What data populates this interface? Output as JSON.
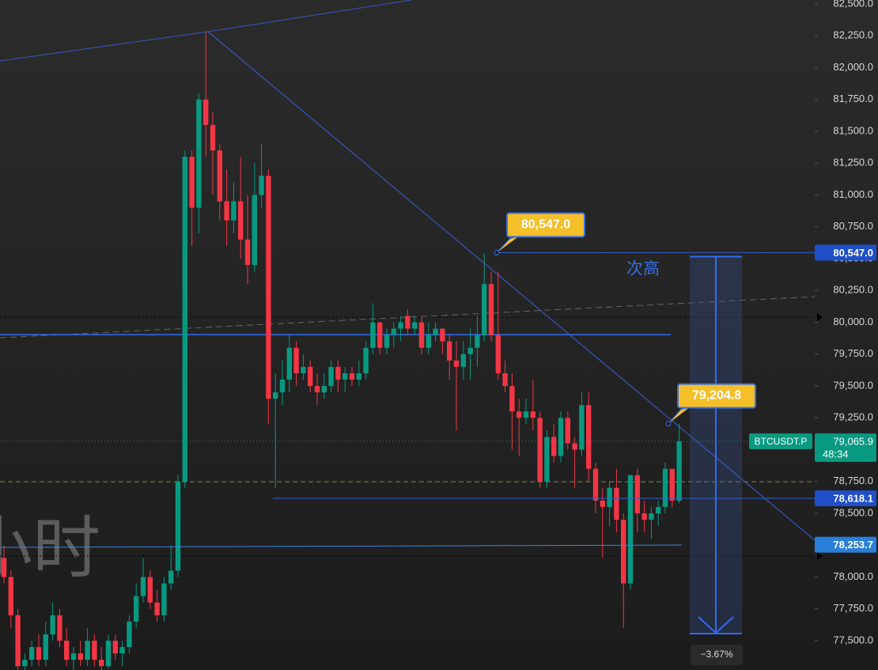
{
  "chart_data": {
    "type": "candlestick",
    "up_color": "#089981",
    "down_color": "#f23645",
    "ylim": [
      77270,
      82531
    ],
    "yticks": [
      {
        "value": 77500,
        "label": "77,500.0"
      },
      {
        "value": 77750,
        "label": "77,750.0"
      },
      {
        "value": 78000,
        "label": "78,000.0"
      },
      {
        "value": 78250,
        "label": "78,250.0"
      },
      {
        "value": 78500,
        "label": "78,500.0"
      },
      {
        "value": 78750,
        "label": "78,750.0"
      },
      {
        "value": 79000,
        "label": "79,000.0"
      },
      {
        "value": 79250,
        "label": "79,250.0"
      },
      {
        "value": 79500,
        "label": "79,500.0"
      },
      {
        "value": 79750,
        "label": "79,750.0"
      },
      {
        "value": 80000,
        "label": "80,000.0"
      },
      {
        "value": 80250,
        "label": "80,250.0"
      },
      {
        "value": 80500,
        "label": "80,500.0"
      },
      {
        "value": 80750,
        "label": "80,750.0"
      },
      {
        "value": 81000,
        "label": "81,000.0"
      },
      {
        "value": 81250,
        "label": "81,250.0"
      },
      {
        "value": 81500,
        "label": "81,500.0"
      },
      {
        "value": 81750,
        "label": "81,750.0"
      },
      {
        "value": 82000,
        "label": "82,000.0"
      },
      {
        "value": 82250,
        "label": "82,250.0"
      },
      {
        "value": 82500,
        "label": "82,500.0"
      }
    ],
    "ohlc": [
      [
        78150,
        78250,
        77950,
        78000
      ],
      [
        78000,
        78050,
        77600,
        77700
      ],
      [
        77700,
        77750,
        77250,
        77300
      ],
      [
        77300,
        77400,
        77250,
        77350
      ],
      [
        77350,
        77500,
        77300,
        77450
      ],
      [
        77450,
        77550,
        77300,
        77350
      ],
      [
        77350,
        77650,
        77300,
        77550
      ],
      [
        77550,
        77800,
        77500,
        77700
      ],
      [
        77700,
        77750,
        77450,
        77500
      ],
      [
        77500,
        77600,
        77300,
        77350
      ],
      [
        77350,
        77450,
        77250,
        77400
      ],
      [
        77400,
        77500,
        77300,
        77350
      ],
      [
        77350,
        77600,
        77300,
        77500
      ],
      [
        77500,
        77550,
        77300,
        77350
      ],
      [
        77350,
        77450,
        77250,
        77300
      ],
      [
        77300,
        77550,
        77280,
        77500
      ],
      [
        77500,
        77550,
        77350,
        77400
      ],
      [
        77400,
        77500,
        77300,
        77450
      ],
      [
        77450,
        77700,
        77400,
        77650
      ],
      [
        77650,
        77950,
        77600,
        77850
      ],
      [
        77850,
        78150,
        77800,
        78000
      ],
      [
        78000,
        78050,
        77750,
        77800
      ],
      [
        77800,
        77900,
        77650,
        77700
      ],
      [
        77700,
        78000,
        77650,
        77950
      ],
      [
        77950,
        78250,
        77900,
        78050
      ],
      [
        78050,
        78800,
        78000,
        78750
      ],
      [
        78750,
        81350,
        78700,
        81300
      ],
      [
        81300,
        81350,
        80600,
        80900
      ],
      [
        80900,
        81800,
        80700,
        81750
      ],
      [
        81750,
        82280,
        81300,
        81550
      ],
      [
        81550,
        81650,
        81000,
        81350
      ],
      [
        81350,
        81400,
        80800,
        80950
      ],
      [
        80950,
        81200,
        80600,
        80800
      ],
      [
        80800,
        81100,
        80700,
        80950
      ],
      [
        80950,
        81300,
        80500,
        80650
      ],
      [
        80650,
        81000,
        80300,
        80450
      ],
      [
        80450,
        81250,
        80400,
        81000
      ],
      [
        81000,
        81400,
        80900,
        81150
      ],
      [
        81150,
        81200,
        79200,
        79400
      ],
      [
        79400,
        79600,
        78700,
        79450
      ],
      [
        79450,
        79700,
        79350,
        79550
      ],
      [
        79550,
        79900,
        79450,
        79800
      ],
      [
        79800,
        79850,
        79500,
        79600
      ],
      [
        79600,
        79750,
        79550,
        79650
      ],
      [
        79650,
        79700,
        79450,
        79500
      ],
      [
        79500,
        79600,
        79350,
        79450
      ],
      [
        79450,
        79600,
        79400,
        79500
      ],
      [
        79500,
        79700,
        79450,
        79650
      ],
      [
        79650,
        79700,
        79450,
        79550
      ],
      [
        79550,
        79650,
        79450,
        79600
      ],
      [
        79600,
        79650,
        79500,
        79550
      ],
      [
        79550,
        79700,
        79500,
        79600
      ],
      [
        79600,
        79850,
        79550,
        79800
      ],
      [
        79800,
        80150,
        79750,
        80000
      ],
      [
        80000,
        80000,
        79750,
        79800
      ],
      [
        79800,
        79950,
        79750,
        79900
      ],
      [
        79900,
        80000,
        79800,
        79950
      ],
      [
        79950,
        80050,
        79850,
        80000
      ],
      [
        80050,
        80100,
        79900,
        79950
      ],
      [
        79950,
        80050,
        79900,
        80000
      ],
      [
        80000,
        80050,
        79750,
        79800
      ],
      [
        79800,
        80000,
        79750,
        79900
      ],
      [
        79900,
        80000,
        79850,
        79950
      ],
      [
        79950,
        79950,
        79750,
        79850
      ],
      [
        79850,
        79900,
        79550,
        79700
      ],
      [
        79700,
        79850,
        79150,
        79650
      ],
      [
        79650,
        79850,
        79550,
        79750
      ],
      [
        79750,
        79950,
        79550,
        79800
      ],
      [
        79800,
        80050,
        79650,
        79900
      ],
      [
        79900,
        80540,
        79850,
        80300
      ],
      [
        80300,
        80400,
        79850,
        79900
      ],
      [
        79900,
        80400,
        79550,
        79600
      ],
      [
        79600,
        79700,
        79450,
        79500
      ],
      [
        79500,
        79600,
        79000,
        79300
      ],
      [
        79300,
        79400,
        78950,
        79250
      ],
      [
        79250,
        79400,
        79200,
        79300
      ],
      [
        79300,
        79550,
        79150,
        79250
      ],
      [
        79250,
        79300,
        78700,
        78750
      ],
      [
        78750,
        79150,
        78700,
        79100
      ],
      [
        79100,
        79200,
        78900,
        78950
      ],
      [
        78950,
        79300,
        78900,
        79250
      ],
      [
        79250,
        79300,
        79000,
        79050
      ],
      [
        79050,
        79100,
        78700,
        79000
      ],
      [
        79000,
        79450,
        78950,
        79350
      ],
      [
        79350,
        79450,
        78750,
        78850
      ],
      [
        78850,
        78900,
        78500,
        78600
      ],
      [
        78600,
        78700,
        78150,
        78550
      ],
      [
        78550,
        78750,
        78400,
        78700
      ],
      [
        78700,
        78850,
        78350,
        78450
      ],
      [
        78450,
        78500,
        77600,
        77950
      ],
      [
        77950,
        78800,
        77900,
        78800
      ],
      [
        78800,
        78850,
        78350,
        78500
      ],
      [
        78500,
        78600,
        78350,
        78450
      ],
      [
        78450,
        78550,
        78300,
        78500
      ],
      [
        78500,
        78600,
        78400,
        78550
      ],
      [
        78550,
        78900,
        78500,
        78850
      ],
      [
        78850,
        78850,
        78550,
        78600
      ],
      [
        78600,
        79204.8,
        78580,
        79065.9
      ]
    ],
    "watermark": "小时",
    "note": "次高",
    "callouts": [
      {
        "value": 80547,
        "label": "80,547.0"
      },
      {
        "value": 79204.8,
        "label": "79,204.8"
      }
    ],
    "price_tags": [
      {
        "value": 80547,
        "label": "80,547.0"
      },
      {
        "value": 78618.1,
        "label": "78,618.1"
      },
      {
        "value": 78253.7,
        "label": "78,253.7"
      }
    ],
    "last_price": {
      "value": 79065.9,
      "label": "79,065.9",
      "symbol": "BTCUSDT.P",
      "countdown": "48:34"
    },
    "measure_label": "−3.67%"
  }
}
